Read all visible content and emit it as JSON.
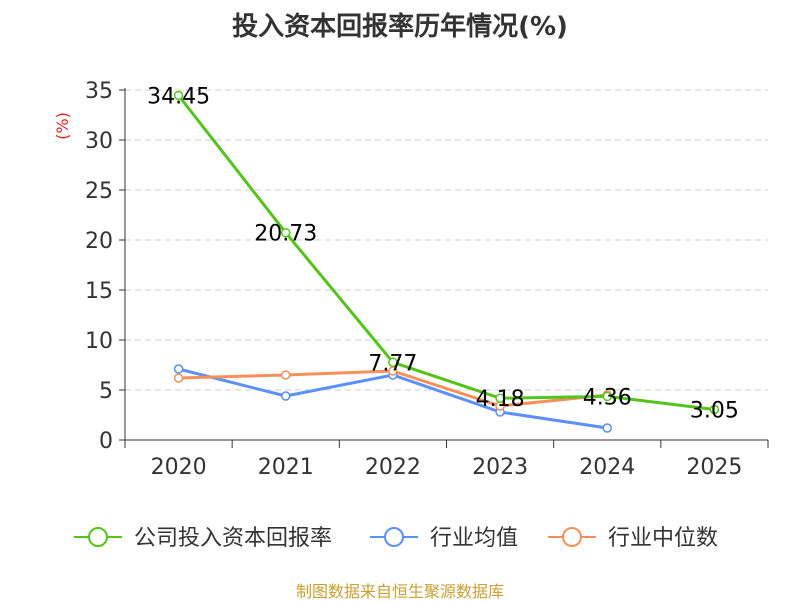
{
  "colors": {
    "company": "#52c41a",
    "industry_avg": "#5b8ff9",
    "industry_median": "#f6905b",
    "grid": "#cccccc",
    "axis": "#333333",
    "ylabel": "#e02020",
    "source": "#c8a033"
  },
  "chart_data": {
    "type": "line",
    "title": "投入资本回报率历年情况(%)",
    "ylabel": "(%)",
    "xlabel": "",
    "categories": [
      "2020",
      "2021",
      "2022",
      "2023",
      "2024",
      "2025"
    ],
    "ylim": [
      0,
      35
    ],
    "yticks": [
      0,
      5,
      10,
      15,
      20,
      25,
      30,
      35
    ],
    "grid": true,
    "legend_position": "bottom",
    "series": [
      {
        "name": "公司投入资本回报率",
        "color_key": "company",
        "values": [
          34.45,
          20.73,
          7.77,
          4.18,
          4.36,
          3.05
        ],
        "labels": [
          "34.45",
          "20.73",
          "7.77",
          "4.18",
          "4.36",
          "3.05"
        ]
      },
      {
        "name": "行业均值",
        "color_key": "industry_avg",
        "values": [
          7.1,
          4.4,
          6.5,
          2.8,
          1.2,
          null
        ]
      },
      {
        "name": "行业中位数",
        "color_key": "industry_median",
        "values": [
          6.2,
          6.5,
          6.9,
          3.4,
          4.5,
          null
        ]
      }
    ]
  },
  "source": "制图数据来自恒生聚源数据库"
}
